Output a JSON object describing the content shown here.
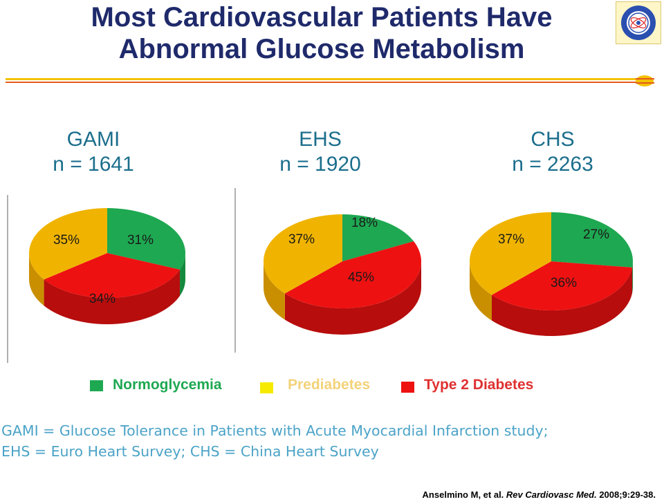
{
  "title": {
    "line1": "Most Cardiovascular Patients Have",
    "line2": "Abnormal Glucose Metabolism"
  },
  "colors": {
    "title": "#1f2a6b",
    "study_heading": "#1b6e8c",
    "normoglycemia": "#1ea851",
    "prediabetes": "#f0b400",
    "type2": "#ee1111",
    "footnote": "#4ba3c7"
  },
  "studies": [
    {
      "name": "GAMI",
      "n": "n = 1641"
    },
    {
      "name": "EHS",
      "n": "n = 1920"
    },
    {
      "name": "CHS",
      "n": "n = 2263"
    }
  ],
  "chart_data": {
    "type": "pie",
    "categories": [
      "Normoglycemia",
      "Prediabetes",
      "Type 2 Diabetes"
    ],
    "series": [
      {
        "name": "GAMI",
        "values": [
          31,
          35,
          34
        ],
        "labels": [
          "31%",
          "35%",
          "34%"
        ]
      },
      {
        "name": "EHS",
        "values": [
          18,
          37,
          45
        ],
        "labels": [
          "18%",
          "37%",
          "45%"
        ]
      },
      {
        "name": "CHS",
        "values": [
          27,
          37,
          36
        ],
        "labels": [
          "27%",
          "37%",
          "36%"
        ]
      }
    ]
  },
  "legend": {
    "items": [
      {
        "label": "Normoglycemia",
        "color": "#1ea851",
        "text_color": "#1ea851"
      },
      {
        "label": "Prediabetes",
        "color": "#f5ea00",
        "text_color": "#f3d27a"
      },
      {
        "label": "Type 2 Diabetes",
        "color": "#ee1111",
        "text_color": "#e03030"
      }
    ]
  },
  "footnote": {
    "line1": "GAMI = Glucose Tolerance in Patients with Acute Myocardial Infarction study;",
    "line2": "EHS = Euro Heart Survey; CHS = China Heart Survey"
  },
  "citation": {
    "authors": "Anselmino M, et al.",
    "journal": "Rev Cardiovasc Med.",
    "details": "2008;9:29-38."
  }
}
